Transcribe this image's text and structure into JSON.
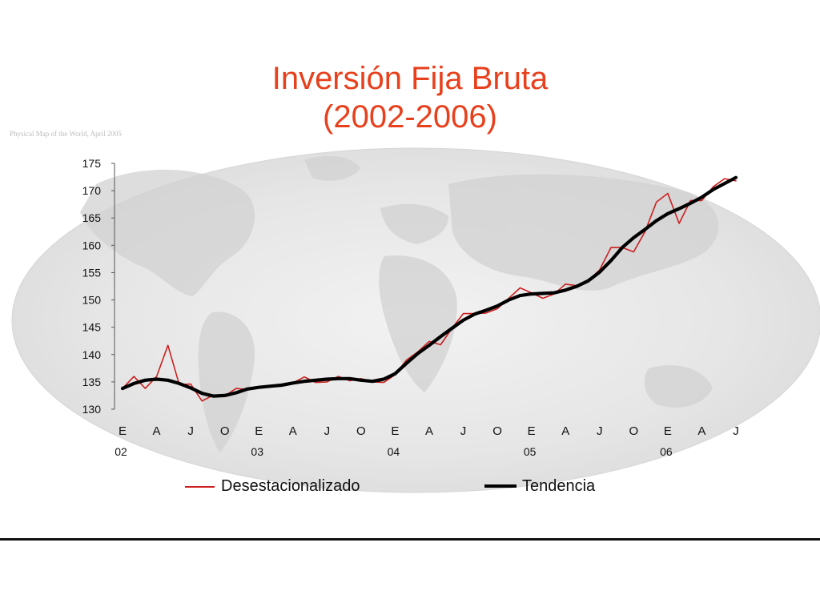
{
  "slide": {
    "title_line_1": "Inversión Fija Bruta",
    "title_line_2": "(2002-2006)",
    "map_caption": "Physical Map of the World, April 2005",
    "title_color": "#e8401c"
  },
  "chart_data": {
    "type": "line",
    "title": "Inversión Fija Bruta (2002-2006)",
    "xlabel": "",
    "ylabel": "",
    "ylim": [
      130,
      175
    ],
    "yticks": [
      130,
      135,
      140,
      145,
      150,
      155,
      160,
      165,
      170,
      175
    ],
    "month_labels": [
      "E",
      "A",
      "J",
      "O",
      "E",
      "A",
      "J",
      "O",
      "E",
      "A",
      "J",
      "O",
      "E",
      "A",
      "J",
      "O",
      "E",
      "A",
      "J"
    ],
    "year_labels": [
      "02",
      "03",
      "04",
      "05",
      "06"
    ],
    "x": [
      "2002-01",
      "2002-02",
      "2002-03",
      "2002-04",
      "2002-05",
      "2002-06",
      "2002-07",
      "2002-08",
      "2002-09",
      "2002-10",
      "2002-11",
      "2002-12",
      "2003-01",
      "2003-02",
      "2003-03",
      "2003-04",
      "2003-05",
      "2003-06",
      "2003-07",
      "2003-08",
      "2003-09",
      "2003-10",
      "2003-11",
      "2003-12",
      "2004-01",
      "2004-02",
      "2004-03",
      "2004-04",
      "2004-05",
      "2004-06",
      "2004-07",
      "2004-08",
      "2004-09",
      "2004-10",
      "2004-11",
      "2004-12",
      "2005-01",
      "2005-02",
      "2005-03",
      "2005-04",
      "2005-05",
      "2005-06",
      "2005-07",
      "2005-08",
      "2005-09",
      "2005-10",
      "2005-11",
      "2005-12",
      "2006-01",
      "2006-02",
      "2006-03",
      "2006-04",
      "2006-05",
      "2006-06",
      "2006-07"
    ],
    "series": [
      {
        "name": "Desestacionalizado",
        "color": "#cc1f1f",
        "values": [
          133.8,
          136.0,
          133.8,
          136.0,
          141.7,
          134.5,
          134.6,
          131.5,
          132.6,
          132.4,
          133.8,
          133.6,
          133.9,
          134.1,
          134.3,
          134.8,
          135.9,
          134.9,
          135.0,
          136.0,
          135.2,
          135.6,
          135.0,
          134.9,
          136.3,
          139.0,
          140.5,
          142.4,
          141.8,
          144.8,
          147.5,
          147.5,
          147.6,
          148.4,
          150.3,
          152.2,
          151.3,
          150.3,
          151.1,
          152.9,
          152.6,
          153.5,
          155.5,
          159.6,
          159.6,
          158.8,
          162.5,
          167.9,
          169.5,
          164.0,
          168.2,
          168.2,
          170.7,
          172.2,
          171.8
        ]
      },
      {
        "name": "Tendencia",
        "color": "#000000",
        "values": [
          133.8,
          134.7,
          135.3,
          135.5,
          135.3,
          134.7,
          133.9,
          132.9,
          132.4,
          132.5,
          133.0,
          133.7,
          134.0,
          134.2,
          134.4,
          134.8,
          135.1,
          135.3,
          135.5,
          135.6,
          135.6,
          135.3,
          135.1,
          135.5,
          136.5,
          138.4,
          140.2,
          141.7,
          143.3,
          144.8,
          146.3,
          147.4,
          148.1,
          148.9,
          150.0,
          150.8,
          151.1,
          151.2,
          151.3,
          151.8,
          152.5,
          153.5,
          155.1,
          157.2,
          159.6,
          161.4,
          162.9,
          164.5,
          165.8,
          166.7,
          167.7,
          168.8,
          170.2,
          171.3,
          172.4
        ]
      }
    ],
    "legend": "bottom",
    "grid": false
  }
}
